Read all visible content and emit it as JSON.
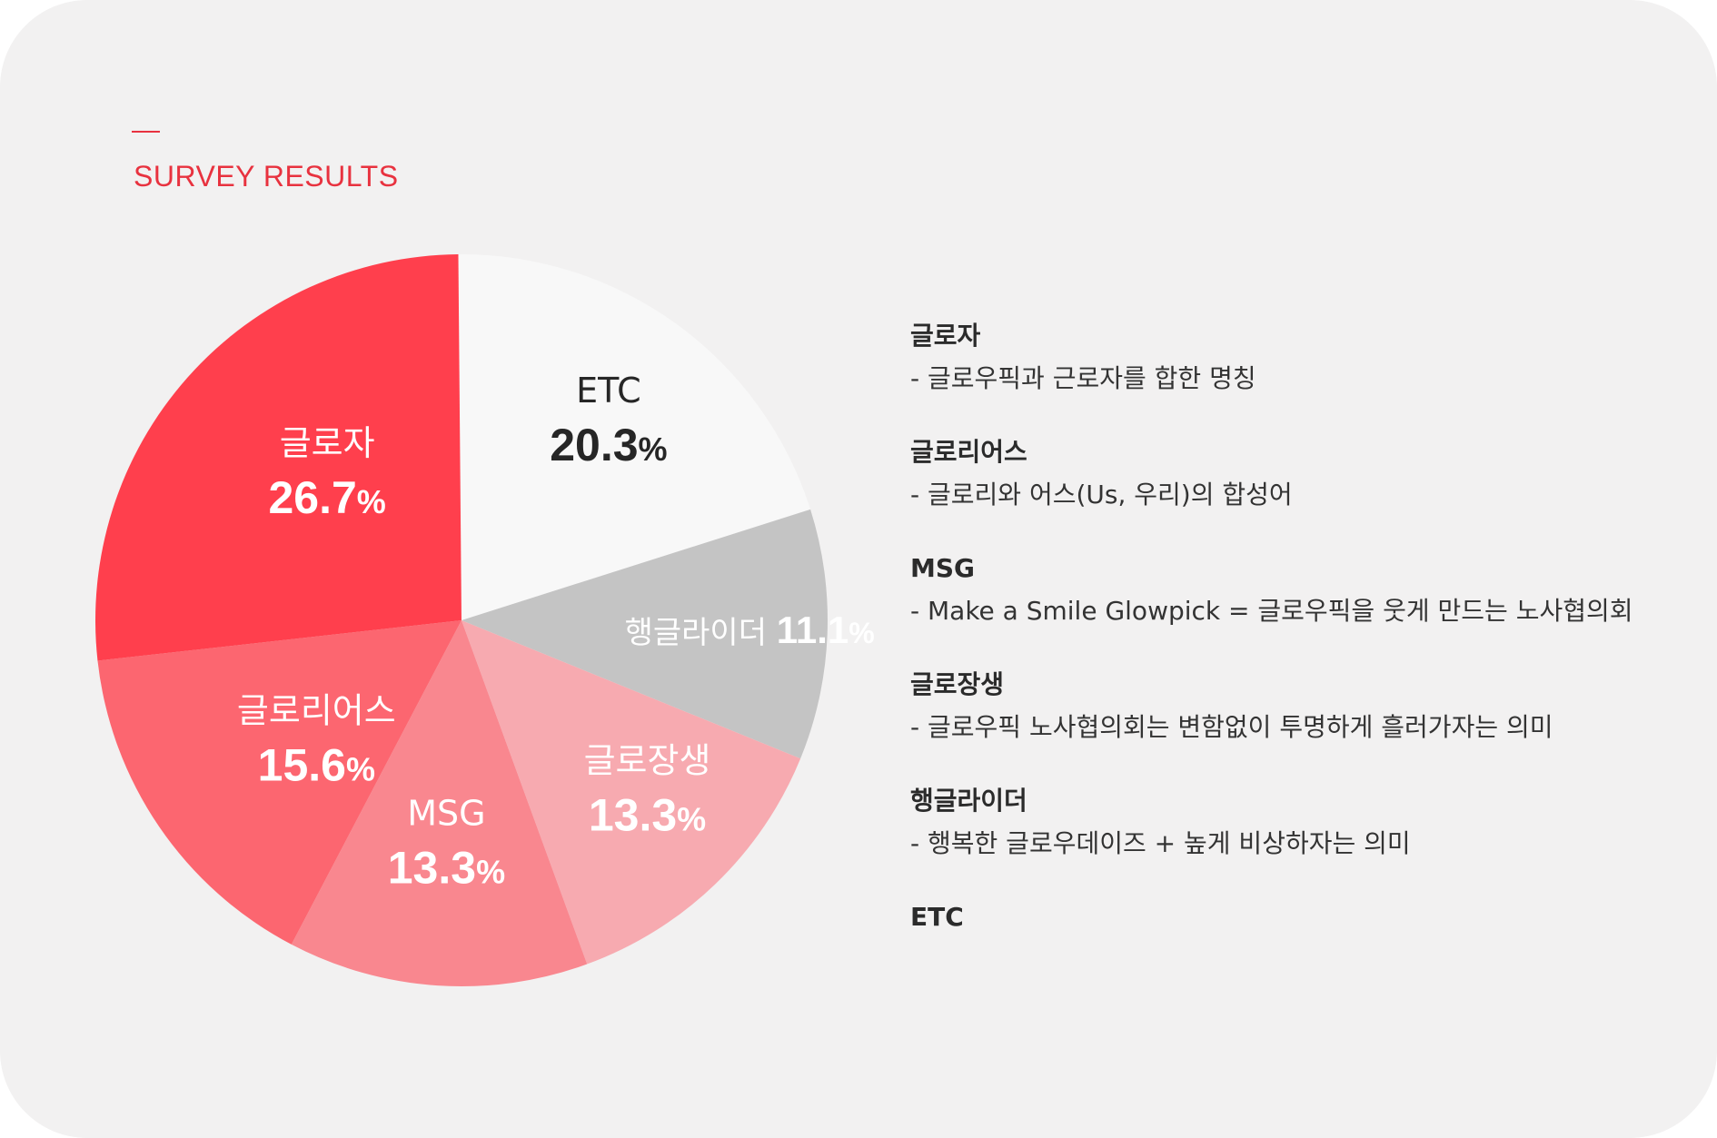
{
  "header": {
    "title": "SURVEY RESULTS"
  },
  "chart_data": {
    "type": "pie",
    "title": "SURVEY RESULTS",
    "unit": "%",
    "slices": [
      {
        "label": "ETC",
        "value": 20.3,
        "color": "#f8f8f8",
        "text_color": "#262626"
      },
      {
        "label": "행글라이더",
        "value": 11.1,
        "color": "#c4c4c4",
        "text_color": "#ffffff"
      },
      {
        "label": "글로장생",
        "value": 13.3,
        "color": "#f7aab0",
        "text_color": "#ffffff"
      },
      {
        "label": "MSG",
        "value": 13.3,
        "color": "#f9878f",
        "text_color": "#ffffff"
      },
      {
        "label": "글로리어스",
        "value": 15.6,
        "color": "#fc6670",
        "text_color": "#ffffff"
      },
      {
        "label": "글로자",
        "value": 26.7,
        "color": "#ff3f4d",
        "text_color": "#ffffff"
      }
    ]
  },
  "legend": {
    "items": [
      {
        "name": "글로자",
        "description": "- 글로우픽과 근로자를 합한 명칭"
      },
      {
        "name": "글로리어스",
        "description": "- 글로리와 어스(Us, 우리)의 합성어"
      },
      {
        "name": "MSG",
        "description": "- Make a Smile Glowpick = 글로우픽을 웃게 만드는 노사협의회"
      },
      {
        "name": "글로장생",
        "description": "- 글로우픽 노사협의회는 변함없이 투명하게 흘러가자는 의미"
      },
      {
        "name": "행글라이더",
        "description": "- 행복한 글로우데이즈 + 높게 비상하자는 의미"
      },
      {
        "name": "ETC",
        "description": ""
      }
    ]
  }
}
